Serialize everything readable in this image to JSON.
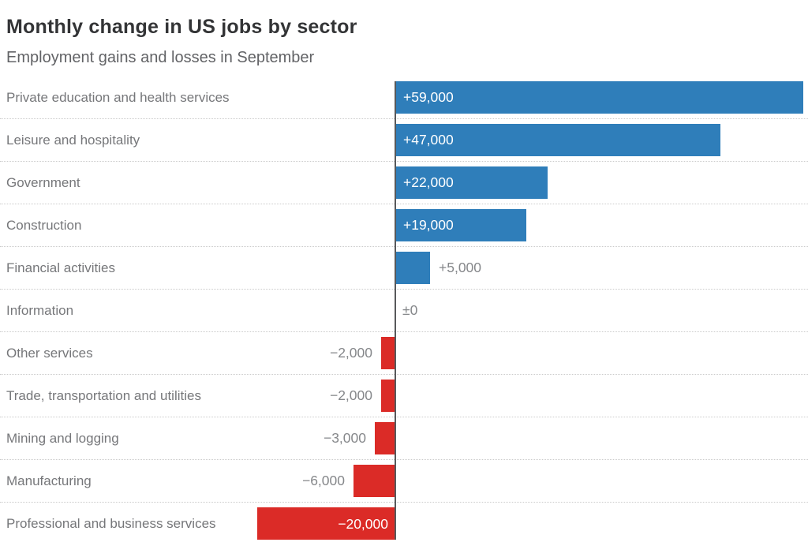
{
  "header": {
    "title": "Monthly change in US jobs by sector",
    "subtitle": "Employment gains and losses in September"
  },
  "chart_data": {
    "type": "bar",
    "orientation": "horizontal",
    "title": "Monthly change in US jobs by sector",
    "subtitle": "Employment gains and losses in September",
    "categories": [
      "Private education and health services",
      "Leisure and hospitality",
      "Government",
      "Construction",
      "Financial activities",
      "Information",
      "Other services",
      "Trade, transportation and utilities",
      "Mining and logging",
      "Manufacturing",
      "Professional and business services"
    ],
    "values": [
      59000,
      47000,
      22000,
      19000,
      5000,
      0,
      -2000,
      -2000,
      -3000,
      -6000,
      -20000
    ],
    "value_labels": [
      "+59,000",
      "+47,000",
      "+22,000",
      "+19,000",
      "+5,000",
      "±0",
      "−2,000",
      "−2,000",
      "−3,000",
      "−6,000",
      "−20,000"
    ],
    "xlim": [
      -20000,
      59000
    ],
    "grid": "none",
    "legend": "none",
    "colors": {
      "positive": "#2f7eba",
      "negative": "#db2b27",
      "axis": "#58595b",
      "value_inside": "#ffffff",
      "value_outside": "#85878a",
      "category_label": "#76777a",
      "separator": "#cbcbcb",
      "title": "#333436",
      "subtitle": "#626366"
    }
  }
}
